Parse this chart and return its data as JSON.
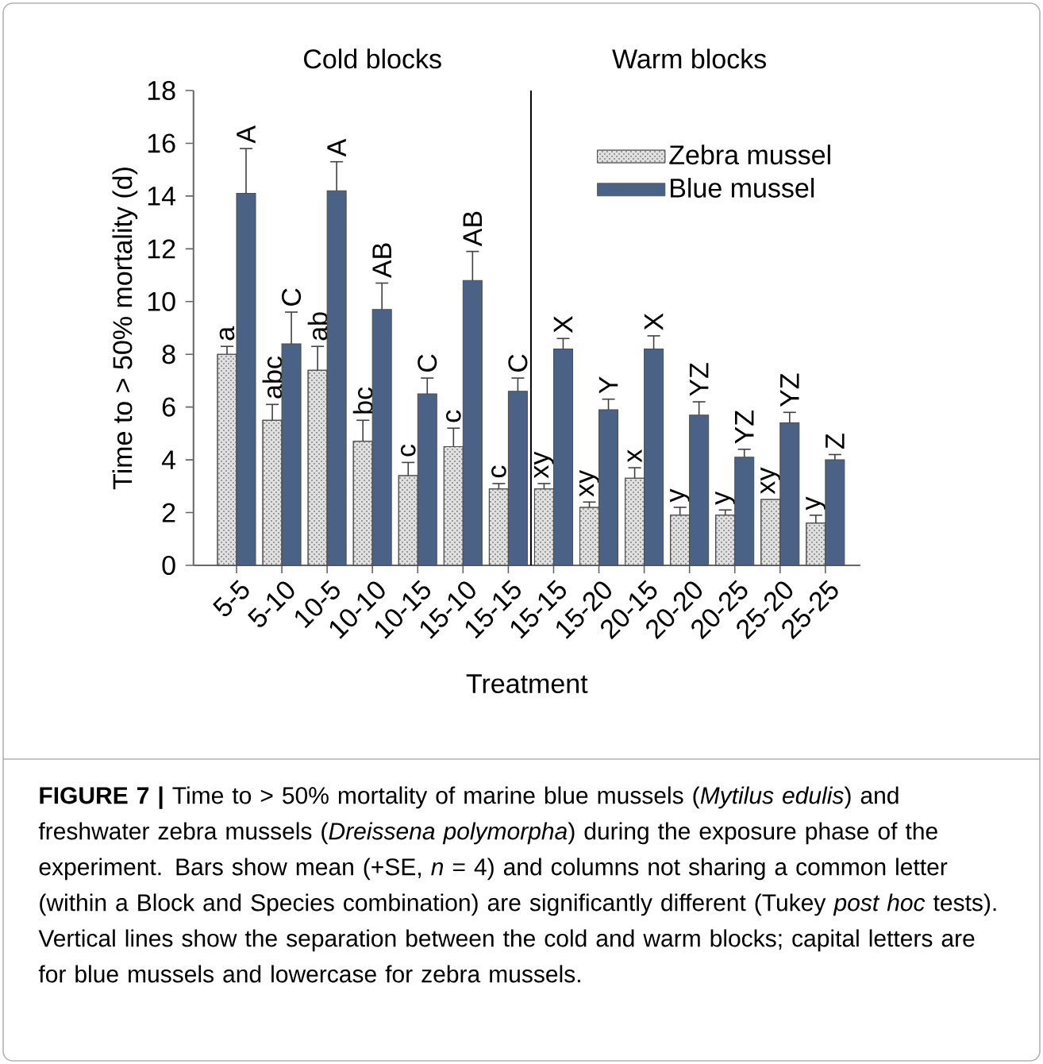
{
  "chart_data": {
    "type": "bar",
    "ylabel": "Time to > 50% mortality (d)",
    "xlabel": "Treatment",
    "categories": [
      "5-5",
      "5-10",
      "10-5",
      "10-10",
      "10-15",
      "15-10",
      "15-15",
      "15-15",
      "15-20",
      "20-15",
      "20-20",
      "20-25",
      "25-20",
      "25-25"
    ],
    "series": [
      {
        "name": "Zebra mussel",
        "color": "#e0e0e0",
        "values": [
          8.0,
          5.5,
          7.4,
          4.7,
          3.4,
          4.5,
          2.9,
          2.9,
          2.2,
          3.3,
          1.9,
          1.9,
          2.5,
          1.6
        ],
        "errors": [
          [
            8.0,
            8.3
          ],
          [
            5.5,
            6.1
          ],
          [
            7.4,
            8.3
          ],
          [
            4.7,
            5.5
          ],
          [
            3.4,
            3.9
          ],
          [
            4.5,
            5.2
          ],
          [
            2.9,
            3.1
          ],
          [
            2.9,
            3.1
          ],
          [
            2.2,
            2.4
          ],
          [
            3.3,
            3.7
          ],
          [
            1.9,
            2.2
          ],
          [
            1.9,
            2.1
          ],
          null,
          [
            1.6,
            1.9
          ]
        ],
        "value_labels": [
          "a",
          "abc",
          "ab",
          "bc",
          "c",
          "c",
          "c",
          "xy",
          "xy",
          "x",
          "y",
          "y",
          "xy",
          "y"
        ]
      },
      {
        "name": "Blue mussel",
        "color": "#4a6285",
        "values": [
          14.1,
          8.4,
          14.2,
          9.7,
          6.5,
          10.8,
          6.6,
          8.2,
          5.9,
          8.2,
          5.7,
          4.1,
          5.4,
          4.0
        ],
        "errors": [
          [
            14.1,
            15.8
          ],
          [
            8.4,
            9.6
          ],
          [
            14.2,
            15.3
          ],
          [
            9.7,
            10.7
          ],
          [
            6.5,
            7.1
          ],
          [
            10.8,
            11.9
          ],
          [
            6.6,
            7.1
          ],
          [
            8.2,
            8.6
          ],
          [
            5.9,
            6.3
          ],
          [
            8.2,
            8.7
          ],
          [
            5.7,
            6.2
          ],
          [
            4.1,
            4.4
          ],
          [
            5.4,
            5.8
          ],
          [
            4.0,
            4.2
          ]
        ],
        "value_labels": [
          "A",
          "C",
          "A",
          "AB",
          "C",
          "AB",
          "C",
          "X",
          "Y",
          "X",
          "YZ",
          "YZ",
          "YZ",
          "Z"
        ]
      }
    ],
    "ylim": [
      0,
      18
    ],
    "yticks": [
      0,
      2,
      4,
      6,
      8,
      10,
      12,
      14,
      16,
      18
    ],
    "legend": "top right",
    "annotations": [
      "Cold blocks",
      "Warm blocks",
      "**FIGURE 7 |** Time to > 50% mortality of marine blue mussels (*Mytilus edulis*) and freshwater zebra mussels (*Dreissena polymorpha*) during the exposure phase of the experiment. Bars show mean (+SE, *n* = 4) and columns not sharing a common letter (within a Block and Species combination) are significantly different (Tukey *post hoc* tests). Vertical lines show the separation between the cold and warm blocks; capital letters are for blue mussels and lowercase for zebra mussels."
    ]
  }
}
